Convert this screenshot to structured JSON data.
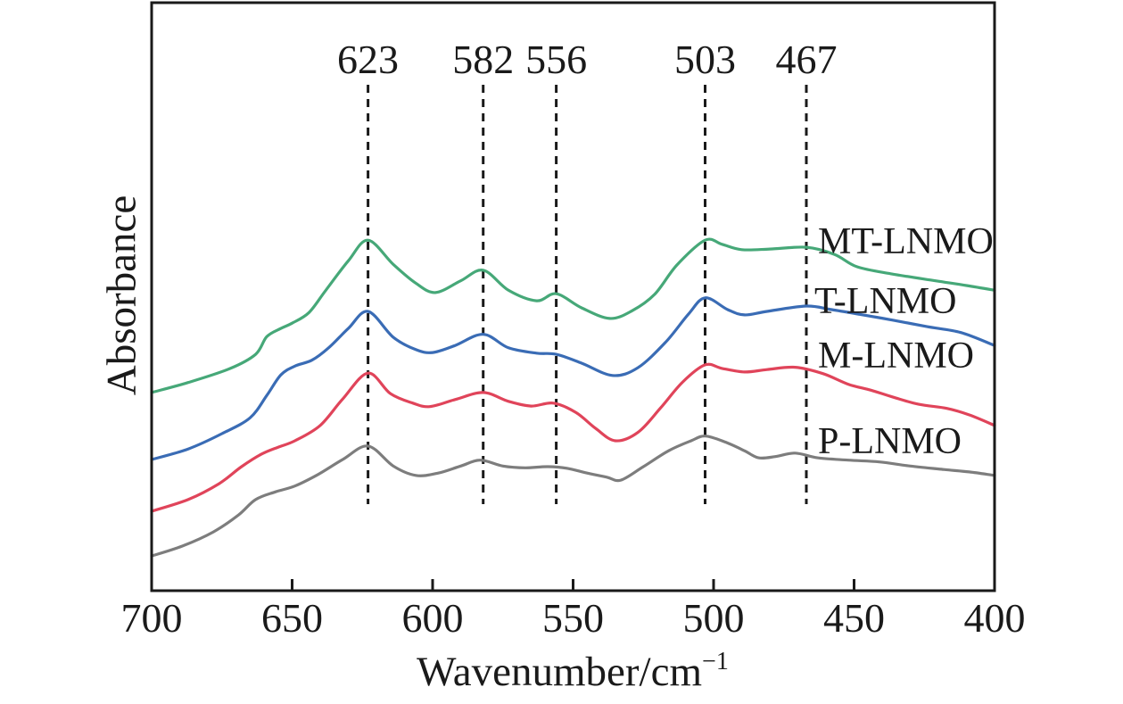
{
  "chart_data": {
    "type": "line",
    "title": "",
    "xlabel": "Wavenumber/cm−1",
    "xlabel_base": "Wavenumber/cm",
    "xlabel_sup": "−1",
    "ylabel": "Absorbance",
    "y_units": "absorbance, arbitrary units (normalized 0-1 of plot height)",
    "x_axis": {
      "min": 400,
      "max": 700,
      "reversed": true,
      "ticks": [
        700,
        650,
        600,
        550,
        500,
        450,
        400
      ]
    },
    "y_axis": {
      "ticks_shown": false
    },
    "grid": false,
    "legend_position": "right-inline-labels",
    "axis_color": "#1a1a1a",
    "peak_annotations": [
      {
        "wavenumber": 623,
        "label": "623"
      },
      {
        "wavenumber": 582,
        "label": "582"
      },
      {
        "wavenumber": 556,
        "label": "556"
      },
      {
        "wavenumber": 503,
        "label": "503"
      },
      {
        "wavenumber": 467,
        "label": "467"
      }
    ],
    "series": [
      {
        "name": "MT-LNMO",
        "color": "#46a878",
        "x": [
          700,
          687,
          672,
          663,
          659,
          654,
          650,
          644,
          638,
          630,
          623,
          614,
          606,
          599,
          590,
          582,
          573,
          563,
          556,
          547,
          537,
          529,
          521,
          513,
          503,
          497,
          490,
          480,
          467,
          457,
          449,
          437,
          421,
          410,
          400
        ],
        "y": [
          0.337,
          0.354,
          0.378,
          0.402,
          0.432,
          0.446,
          0.455,
          0.473,
          0.511,
          0.561,
          0.596,
          0.555,
          0.523,
          0.507,
          0.527,
          0.545,
          0.511,
          0.493,
          0.505,
          0.481,
          0.463,
          0.476,
          0.504,
          0.554,
          0.596,
          0.589,
          0.58,
          0.581,
          0.584,
          0.572,
          0.551,
          0.539,
          0.527,
          0.519,
          0.511
        ]
      },
      {
        "name": "T-LNMO",
        "color": "#3a6cb5",
        "x": [
          700,
          687,
          675,
          665,
          659,
          654,
          649,
          643,
          637,
          630,
          623,
          614,
          606,
          600,
          592,
          582,
          573,
          563,
          556,
          547,
          536,
          527,
          517,
          509,
          503,
          495,
          489,
          481,
          467,
          458,
          448,
          436,
          424,
          412,
          400
        ],
        "y": [
          0.223,
          0.241,
          0.267,
          0.294,
          0.332,
          0.367,
          0.382,
          0.392,
          0.413,
          0.446,
          0.475,
          0.431,
          0.41,
          0.405,
          0.417,
          0.436,
          0.413,
          0.404,
          0.402,
          0.387,
          0.366,
          0.379,
          0.423,
          0.47,
          0.498,
          0.478,
          0.469,
          0.475,
          0.484,
          0.478,
          0.47,
          0.46,
          0.449,
          0.439,
          0.417
        ]
      },
      {
        "name": "M-LNMO",
        "color": "#e0445a",
        "x": [
          700,
          687,
          676,
          668,
          661,
          655,
          649,
          640,
          632,
          623,
          615,
          607,
          601,
          592,
          582,
          573,
          565,
          557,
          549,
          542,
          535,
          527,
          519,
          511,
          503,
          497,
          489,
          481,
          471,
          461,
          452,
          444,
          436,
          427,
          417,
          409,
          400
        ],
        "y": [
          0.135,
          0.155,
          0.182,
          0.211,
          0.232,
          0.244,
          0.255,
          0.281,
          0.326,
          0.37,
          0.335,
          0.319,
          0.313,
          0.325,
          0.337,
          0.322,
          0.314,
          0.319,
          0.303,
          0.276,
          0.255,
          0.269,
          0.31,
          0.355,
          0.384,
          0.378,
          0.372,
          0.376,
          0.38,
          0.369,
          0.351,
          0.341,
          0.329,
          0.317,
          0.31,
          0.299,
          0.281
        ]
      },
      {
        "name": "P-LNMO",
        "color": "#7d7d7d",
        "x": [
          700,
          689,
          678,
          669,
          663,
          656,
          649,
          641,
          632,
          623,
          614,
          606,
          598,
          590,
          583,
          575,
          567,
          559,
          552,
          545,
          538,
          533,
          525,
          516,
          508,
          503,
          496,
          489,
          484,
          478,
          471,
          463,
          452,
          441,
          430,
          418,
          409,
          400
        ],
        "y": [
          0.059,
          0.076,
          0.1,
          0.129,
          0.155,
          0.168,
          0.178,
          0.197,
          0.223,
          0.246,
          0.212,
          0.196,
          0.2,
          0.212,
          0.222,
          0.212,
          0.209,
          0.211,
          0.208,
          0.2,
          0.193,
          0.188,
          0.211,
          0.238,
          0.255,
          0.263,
          0.253,
          0.238,
          0.226,
          0.228,
          0.234,
          0.226,
          0.222,
          0.219,
          0.212,
          0.206,
          0.202,
          0.196
        ]
      }
    ]
  }
}
